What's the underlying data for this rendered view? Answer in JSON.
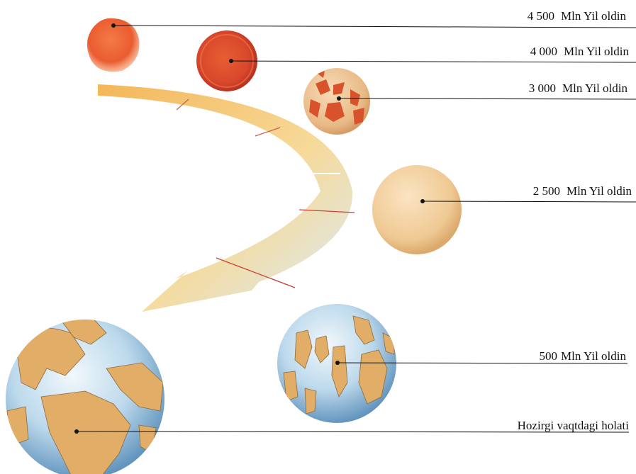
{
  "diagram": {
    "stages": [
      {
        "id": "s4500",
        "years": "4 500",
        "unit": "Mln Yil oldin",
        "color": "#e85a30"
      },
      {
        "id": "s4000",
        "years": "4 000",
        "unit": "Mln Yil oldin",
        "color": "#d9482a"
      },
      {
        "id": "s3000",
        "years": "3 000",
        "unit": "Mln Yil oldin",
        "color": "#e8b988"
      },
      {
        "id": "s2500",
        "years": "2 500",
        "unit": "Mln Yil oldin",
        "color": "#ecc793"
      },
      {
        "id": "s500",
        "years": "500",
        "unit": "Mln Yil oldin",
        "color": "#cfe4ef"
      },
      {
        "id": "now",
        "years": "",
        "unit": "Hozirgi vaqtdagi holati",
        "color": "#8fb8d8"
      }
    ],
    "arrow_color": "#f3b64a",
    "ocean_color": "#b9d9ee",
    "land_color": "#e2ad66"
  }
}
